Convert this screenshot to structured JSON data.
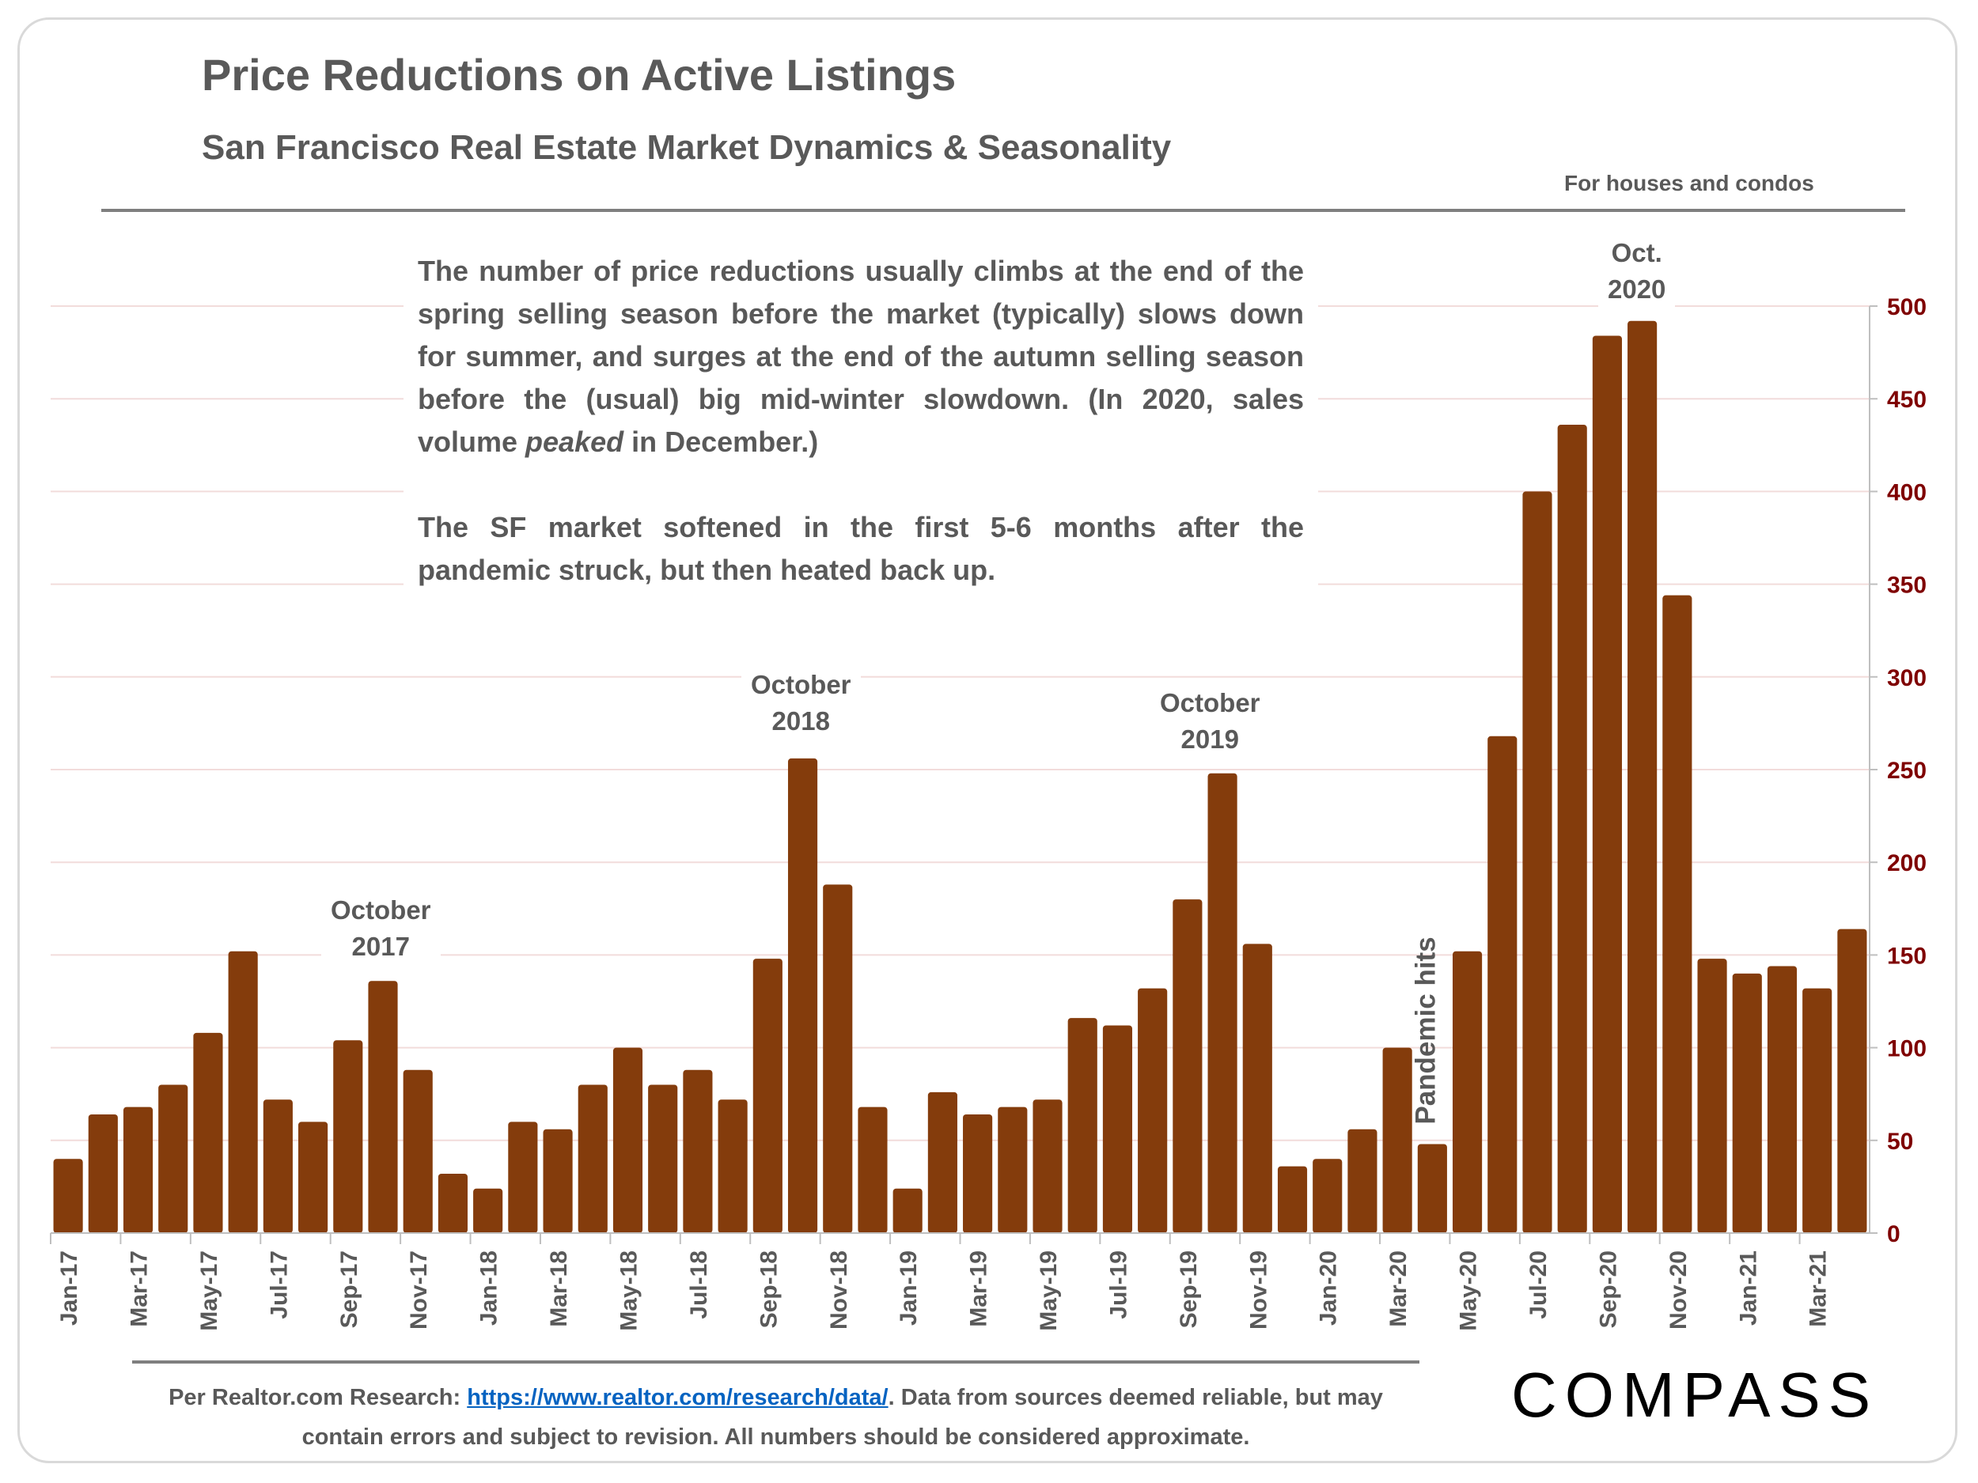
{
  "header": {
    "title": "Price Reductions on Active Listings",
    "subtitle": "San Francisco Real Estate Market Dynamics & Seasonality",
    "scope": "For houses and condos"
  },
  "note": {
    "p1_a": "The number of price reductions usually climbs at the end of the spring selling season before the market (typically) slows down for summer, and surges at the end of the autumn selling season before the (usual) big mid-winter slowdown. (In 2020, sales volume ",
    "p1_em": "peaked",
    "p1_b": " in December.)",
    "p2": "The SF market softened in the first 5-6 months after the pandemic struck, but then heated back up."
  },
  "annotations": {
    "oct2017": [
      "October",
      "2017"
    ],
    "oct2018": [
      "October",
      "2018"
    ],
    "oct2019": [
      "October",
      "2019"
    ],
    "oct2020": [
      "Oct.",
      "2020"
    ],
    "pandemic": "Pandemic hits"
  },
  "footer": {
    "prefix": "Per Realtor.com Research:  ",
    "link": "https://www.realtor.com/research/data/",
    "suffix": ". Data from sources deemed reliable, but may contain errors and subject to revision. All numbers should be considered approximate."
  },
  "logo": "COMPASS",
  "colors": {
    "bar": "#843c0c",
    "axis_labels": "#7f0000",
    "grid": "#f2dcdb"
  },
  "chart_data": {
    "type": "bar",
    "title": "Price Reductions on Active Listings",
    "categories": [
      "Jan-17",
      "Feb-17",
      "Mar-17",
      "Apr-17",
      "May-17",
      "Jun-17",
      "Jul-17",
      "Aug-17",
      "Sep-17",
      "Oct-17",
      "Nov-17",
      "Dec-17",
      "Jan-18",
      "Feb-18",
      "Mar-18",
      "Apr-18",
      "May-18",
      "Jun-18",
      "Jul-18",
      "Aug-18",
      "Sep-18",
      "Oct-18",
      "Nov-18",
      "Dec-18",
      "Jan-19",
      "Feb-19",
      "Mar-19",
      "Apr-19",
      "May-19",
      "Jun-19",
      "Jul-19",
      "Aug-19",
      "Sep-19",
      "Oct-19",
      "Nov-19",
      "Dec-19",
      "Jan-20",
      "Feb-20",
      "Mar-20",
      "Apr-20",
      "May-20",
      "Jun-20",
      "Jul-20",
      "Aug-20",
      "Sep-20",
      "Oct-20",
      "Nov-20",
      "Dec-20",
      "Jan-21",
      "Feb-21",
      "Mar-21",
      "Apr-21"
    ],
    "values": [
      40,
      64,
      68,
      80,
      108,
      152,
      72,
      60,
      104,
      136,
      88,
      32,
      24,
      60,
      56,
      80,
      100,
      80,
      88,
      72,
      148,
      256,
      188,
      68,
      24,
      76,
      64,
      68,
      72,
      116,
      112,
      132,
      180,
      248,
      156,
      36,
      40,
      56,
      100,
      48,
      152,
      268,
      400,
      436,
      484,
      492,
      344,
      148,
      140,
      144,
      132,
      164
    ],
    "ylim": [
      0,
      500
    ],
    "yticks": [
      0,
      50,
      100,
      150,
      200,
      250,
      300,
      350,
      400,
      450,
      500
    ],
    "y_axis_position": "right",
    "x_tick_labels_every": 2,
    "grid": true
  }
}
